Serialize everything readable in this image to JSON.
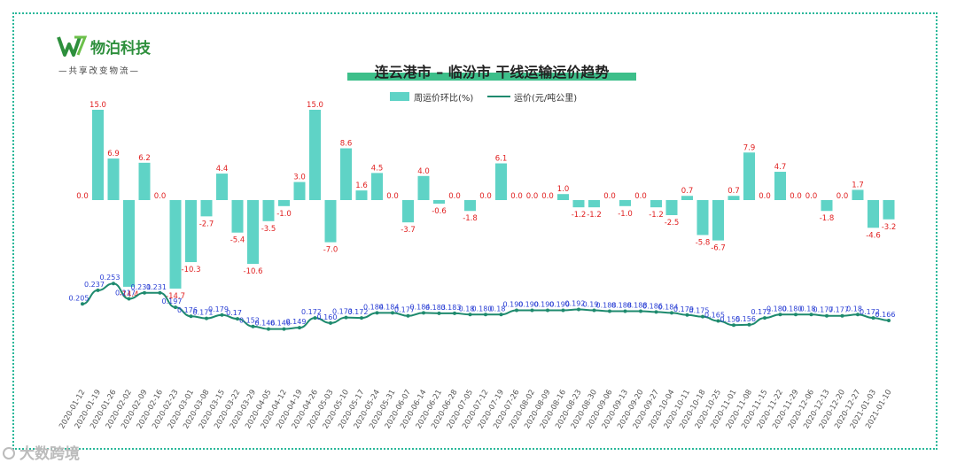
{
  "brand": {
    "name": "物泊科技",
    "slogan": "—共享改变物流—"
  },
  "watermark": "大数跨境",
  "colors": {
    "bar": "#5fd3c6",
    "line": "#1e8a6e",
    "marker": "#1e8a6e",
    "bar_label": "#e02020",
    "line_label": "#2a3fd4",
    "frame": "#2ab89a",
    "title_underline": "#3dbf8a"
  },
  "chart_data": {
    "type": "bar",
    "title": "连云港市 – 临汾市 干线运输运价趋势",
    "legend": {
      "position": "top-center",
      "bar": "周运价环比(%)",
      "line": "运价(元/吨公里)"
    },
    "categories": [
      "2020-01-12",
      "2020-01-19",
      "2020-01-26",
      "2020-02-02",
      "2020-02-09",
      "2020-02-16",
      "2020-02-23",
      "2020-03-01",
      "2020-03-08",
      "2020-03-15",
      "2020-03-22",
      "2020-03-29",
      "2020-04-05",
      "2020-04-12",
      "2020-04-19",
      "2020-04-26",
      "2020-05-03",
      "2020-05-10",
      "2020-05-17",
      "2020-05-24",
      "2020-05-31",
      "2020-06-07",
      "2020-06-14",
      "2020-06-21",
      "2020-06-28",
      "2020-07-05",
      "2020-07-12",
      "2020-07-19",
      "2020-07-26",
      "2020-08-02",
      "2020-08-09",
      "2020-08-16",
      "2020-08-23",
      "2020-08-30",
      "2020-09-06",
      "2020-09-13",
      "2020-09-20",
      "2020-09-27",
      "2020-10-04",
      "2020-10-11",
      "2020-10-18",
      "2020-10-25",
      "2020-11-01",
      "2020-11-08",
      "2020-11-15",
      "2020-11-22",
      "2020-11-29",
      "2020-12-06",
      "2020-12-13",
      "2020-12-20",
      "2020-12-27",
      "2021-01-03",
      "2021-01-10"
    ],
    "bar_labels": [
      "0.0",
      "15.0",
      "6.9",
      "-14.4",
      "6.2",
      "0.0",
      "-14.7",
      "-10.3",
      "-2.7",
      "4.4",
      "-5.4",
      "-10.6",
      "-3.5",
      "-1.0",
      "3.0",
      "15.0",
      "-7.0",
      "8.6",
      "1.6",
      "4.5",
      "0.0",
      "-3.7",
      "4.0",
      "-0.6",
      "0.0",
      "-1.8",
      "0.0",
      "6.1",
      "0.0",
      "0.0",
      "0.0",
      "1.0",
      "-1.2",
      "-1.2",
      "0.0",
      "-1.0",
      "0.0",
      "-1.2",
      "-2.5",
      "0.7",
      "-5.8",
      "-6.7",
      "0.7",
      "7.9",
      "0.0",
      "4.7",
      "0.0",
      "0.0",
      "-1.8",
      "0.0",
      "1.7",
      "-4.6",
      "-3.2"
    ],
    "line_labels": [
      "0.205",
      "0.237",
      "0.253",
      "0.217",
      "0.231",
      "0.231",
      "0.197",
      "0.176",
      "0.171",
      "0.179",
      "0.17",
      "0.152",
      "0.146",
      "0.146",
      "0.149",
      "0.172",
      "0.160",
      "0.173",
      "0.172",
      "0.184",
      "0.184",
      "0.177",
      "0.184",
      "0.183",
      "0.183",
      "0.18",
      "0.180",
      "0.18",
      "0.190",
      "0.190",
      "0.190",
      "0.190",
      "0.192",
      "0.19",
      "0.188",
      "0.188",
      "0.188",
      "0.186",
      "0.184",
      "0.179",
      "0.175",
      "0.165",
      "0.155",
      "0.156",
      "0.172",
      "0.180",
      "0.180",
      "0.18",
      "0.177",
      "0.177",
      "0.18",
      "0.172",
      "0.166"
    ]
  }
}
